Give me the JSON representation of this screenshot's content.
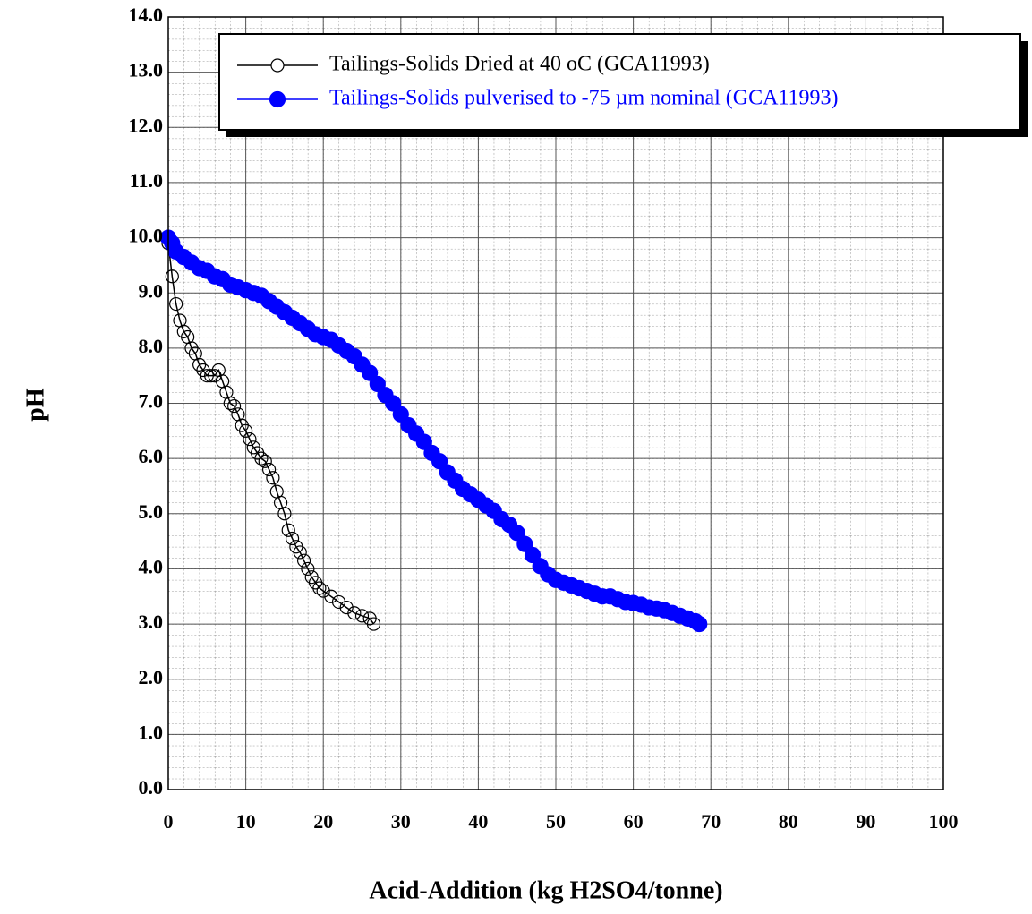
{
  "chart_data": {
    "type": "line",
    "x_label": "Acid-Addition (kg H2SO4/tonne)",
    "y_label": "pH",
    "xlim": [
      0,
      100
    ],
    "xticks": [
      0,
      10,
      20,
      30,
      40,
      50,
      60,
      70,
      80,
      90,
      100
    ],
    "ylim": [
      0,
      14
    ],
    "yticks": [
      {
        "value": 0,
        "label": "0.0"
      },
      {
        "value": 1,
        "label": "1.0"
      },
      {
        "value": 2,
        "label": "2.0"
      },
      {
        "value": 3,
        "label": "3.0"
      },
      {
        "value": 4,
        "label": "4.0"
      },
      {
        "value": 5,
        "label": "5.0"
      },
      {
        "value": 6,
        "label": "6.0"
      },
      {
        "value": 7,
        "label": "7.0"
      },
      {
        "value": 8,
        "label": "8.0"
      },
      {
        "value": 9,
        "label": "9.0"
      },
      {
        "value": 10,
        "label": "10.0"
      },
      {
        "value": 11,
        "label": "11.0"
      },
      {
        "value": 12,
        "label": "12.0"
      },
      {
        "value": 13,
        "label": "13.0"
      },
      {
        "value": 14,
        "label": "14.0"
      }
    ],
    "grid": true,
    "legend_position": "top-right",
    "series": [
      {
        "name": "Tailings-Solids Dried at 40 oC (GCA11993)",
        "color": "#000000",
        "marker": "open",
        "x": [
          0,
          0.5,
          1,
          1.5,
          2,
          2.5,
          3,
          3.5,
          4,
          4.5,
          5,
          5.5,
          6,
          6.5,
          7,
          7.5,
          8,
          8.5,
          9,
          9.5,
          10,
          10.5,
          11,
          11.5,
          12,
          12.5,
          13,
          13.5,
          14,
          14.5,
          15,
          15.5,
          16,
          16.5,
          17,
          17.5,
          18,
          18.5,
          19,
          19.5,
          20,
          21,
          22,
          23,
          24,
          25,
          26,
          26.5
        ],
        "values": [
          9.9,
          9.3,
          8.8,
          8.5,
          8.3,
          8.2,
          8.0,
          7.9,
          7.7,
          7.6,
          7.5,
          7.5,
          7.5,
          7.6,
          7.4,
          7.2,
          7.0,
          6.95,
          6.8,
          6.6,
          6.5,
          6.35,
          6.2,
          6.1,
          6.0,
          5.95,
          5.8,
          5.65,
          5.4,
          5.2,
          5.0,
          4.7,
          4.55,
          4.4,
          4.3,
          4.15,
          4.0,
          3.85,
          3.75,
          3.65,
          3.6,
          3.5,
          3.4,
          3.3,
          3.2,
          3.15,
          3.1,
          3.0
        ]
      },
      {
        "name": "Tailings-Solids pulverised to -75 µm nominal (GCA11993)",
        "color": "#0000ff",
        "marker": "filled",
        "x": [
          0,
          0.5,
          1,
          2,
          3,
          4,
          5,
          6,
          7,
          8,
          9,
          10,
          11,
          12,
          13,
          14,
          15,
          16,
          17,
          18,
          19,
          20,
          21,
          22,
          23,
          24,
          25,
          26,
          27,
          28,
          29,
          30,
          31,
          32,
          33,
          34,
          35,
          36,
          37,
          38,
          39,
          40,
          41,
          42,
          43,
          44,
          45,
          46,
          47,
          48,
          49,
          50,
          51,
          52,
          53,
          54,
          55,
          56,
          57,
          58,
          59,
          60,
          61,
          62,
          63,
          64,
          65,
          66,
          67,
          68,
          68.5
        ],
        "values": [
          10.0,
          9.9,
          9.75,
          9.65,
          9.55,
          9.45,
          9.4,
          9.3,
          9.25,
          9.15,
          9.1,
          9.05,
          9.0,
          8.95,
          8.85,
          8.75,
          8.65,
          8.55,
          8.45,
          8.35,
          8.25,
          8.2,
          8.15,
          8.05,
          7.95,
          7.85,
          7.7,
          7.55,
          7.35,
          7.15,
          7.0,
          6.8,
          6.6,
          6.45,
          6.3,
          6.1,
          5.95,
          5.75,
          5.6,
          5.45,
          5.35,
          5.25,
          5.15,
          5.05,
          4.9,
          4.8,
          4.65,
          4.45,
          4.25,
          4.05,
          3.9,
          3.8,
          3.75,
          3.7,
          3.65,
          3.6,
          3.55,
          3.5,
          3.5,
          3.45,
          3.4,
          3.38,
          3.35,
          3.3,
          3.28,
          3.25,
          3.2,
          3.15,
          3.1,
          3.05,
          3.0
        ]
      }
    ]
  }
}
